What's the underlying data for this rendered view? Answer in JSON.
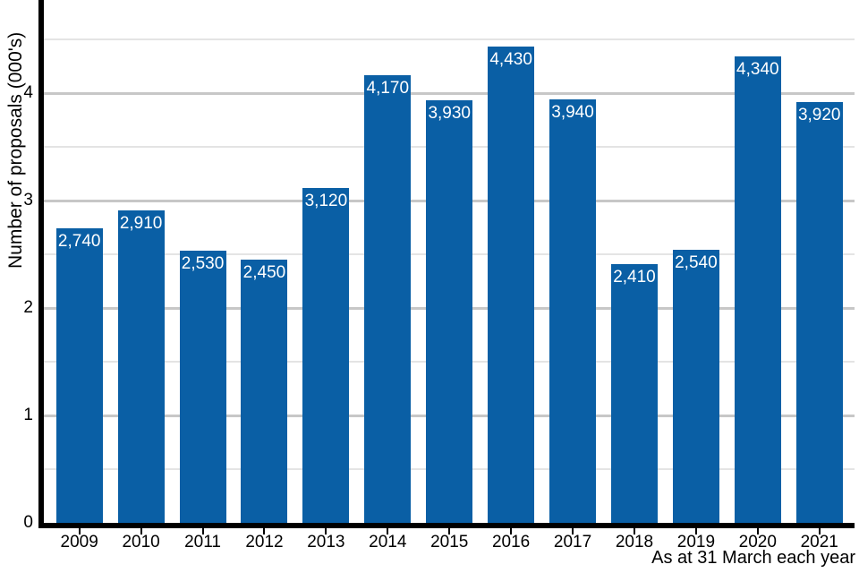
{
  "chart_data": {
    "type": "bar",
    "title": "",
    "xlabel": "",
    "ylabel": "Number of proposals (000's)",
    "caption": "As at 31 March each year",
    "categories": [
      "2009",
      "2010",
      "2011",
      "2012",
      "2013",
      "2014",
      "2015",
      "2016",
      "2017",
      "2018",
      "2019",
      "2020",
      "2021"
    ],
    "values": [
      2740,
      2910,
      2530,
      2450,
      3120,
      4170,
      3930,
      4430,
      3940,
      2410,
      2540,
      4340,
      3920
    ],
    "bar_labels": [
      "2,740",
      "2,910",
      "2,530",
      "2,450",
      "3,120",
      "4,170",
      "3,930",
      "4,430",
      "3,940",
      "2,410",
      "2,540",
      "4,340",
      "3,920"
    ],
    "value_scale": "thousands (000's)",
    "ylim": [
      0,
      4.82
    ],
    "yticks": [
      0,
      1,
      2,
      3,
      4
    ],
    "grid": "horizontal only; minor lines every 0.5 (light), major lines at integers (darker)",
    "legend": "none",
    "colors": {
      "bar": "#0a5fa5",
      "bar_label_text": "#ffffff",
      "axis": "#000000",
      "grid_major": "#c7c7c7",
      "grid_minor": "#e4e4e4",
      "text": "#000000",
      "background": "#ffffff"
    }
  }
}
